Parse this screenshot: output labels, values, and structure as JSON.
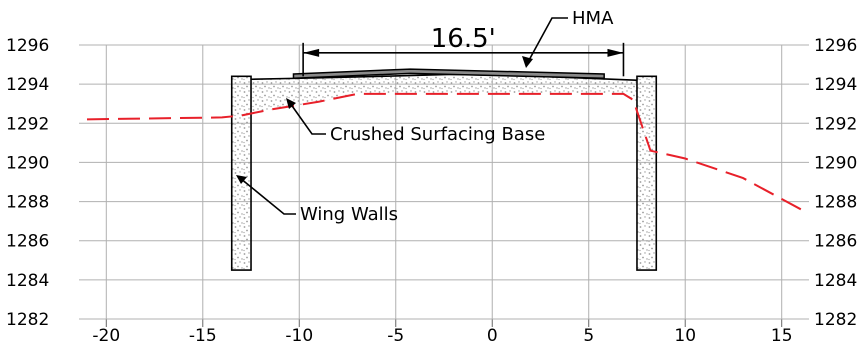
{
  "chart_data": {
    "type": "line",
    "title": "",
    "xlabel": "",
    "ylabel": "",
    "xlim": [
      -21,
      16
    ],
    "ylim": [
      1282,
      1296
    ],
    "x_ticks": [
      "-20",
      "-15",
      "-10",
      "-5",
      "0",
      "5",
      "10",
      "15"
    ],
    "y_ticks": [
      "1296",
      "1294",
      "1292",
      "1290",
      "1288",
      "1286",
      "1284",
      "1282"
    ],
    "grid": true,
    "series": [
      {
        "line_style": "dashed",
        "color": "#e8202a",
        "x": [
          -21,
          -14,
          -13,
          -11.5,
          -9,
          -7,
          -5,
          0,
          3,
          6.8,
          7.3,
          8.2,
          10,
          13,
          16
        ],
        "y": [
          1292.2,
          1292.3,
          1292.4,
          1292.7,
          1293.1,
          1293.5,
          1293.5,
          1293.5,
          1293.5,
          1293.5,
          1293.2,
          1290.6,
          1290.2,
          1289.2,
          1287.6
        ]
      }
    ],
    "shapes": {
      "left_wing_wall": {
        "x1": -13.5,
        "x2": -12.5,
        "y_top": 1294.4,
        "y_bottom": 1284.5
      },
      "right_wing_wall": {
        "x1": 7.5,
        "x2": 8.5,
        "y_top": 1294.4,
        "y_bottom": 1284.5
      },
      "base_top": {
        "x": [
          -12.5,
          -9,
          -5,
          -2,
          2,
          5,
          7.5
        ],
        "y": [
          1294.25,
          1294.32,
          1294.42,
          1294.5,
          1294.42,
          1294.3,
          1294.2
        ]
      },
      "hma": {
        "x1": -10.3,
        "x2": 5.8,
        "y": [
          1294.3,
          1294.55,
          1294.3
        ],
        "thickness": 0.22
      },
      "dimension": {
        "x1": -9.8,
        "x2": 6.8,
        "y": 1295.6
      }
    },
    "annotations": {
      "dimension_label": "16.5'",
      "hma_label": "HMA",
      "base_label": "Crushed Surfacing Base",
      "wall_label": "Wing Walls"
    },
    "colors": {
      "ground_line": "#e8202a",
      "grid": "#b0b0b0",
      "stipple": "#9a9a9a"
    }
  }
}
